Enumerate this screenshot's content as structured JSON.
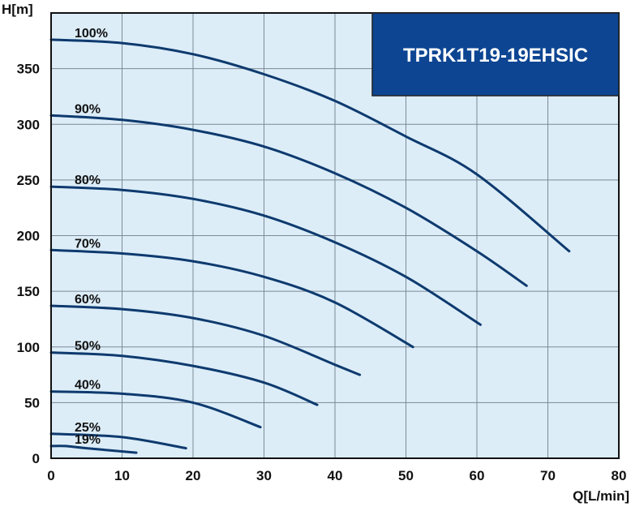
{
  "chart_data": {
    "type": "line",
    "title": "TPRK1T19-19EHSIC",
    "xlabel": "Q[L/min]",
    "ylabel": "H[m]",
    "xlim": [
      0,
      80
    ],
    "ylim": [
      0,
      400
    ],
    "xticks": [
      "0",
      "10",
      "20",
      "30",
      "40",
      "50",
      "60",
      "70",
      "80"
    ],
    "yticks": [
      "0",
      "50",
      "100",
      "150",
      "200",
      "250",
      "300",
      "350"
    ],
    "grid": true,
    "colors": {
      "plot_bg": "#dcedf8",
      "curve": "#0e3a6e",
      "title_bg": "#0d4592",
      "grid": "#7d8a96"
    },
    "series": [
      {
        "name": "100%",
        "x": [
          0,
          10,
          20,
          30,
          40,
          50,
          60,
          73
        ],
        "y": [
          376,
          373,
          363,
          345,
          321,
          289,
          255,
          186
        ]
      },
      {
        "name": "90%",
        "x": [
          0,
          10,
          20,
          30,
          40,
          50,
          60,
          67
        ],
        "y": [
          308,
          304,
          295,
          280,
          256,
          225,
          186,
          155
        ]
      },
      {
        "name": "80%",
        "x": [
          0,
          10,
          20,
          30,
          40,
          50,
          60.5
        ],
        "y": [
          244,
          241,
          233,
          218,
          194,
          163,
          120
        ]
      },
      {
        "name": "70%",
        "x": [
          0,
          10,
          20,
          30,
          40,
          51
        ],
        "y": [
          187,
          184,
          177,
          163,
          140,
          100
        ]
      },
      {
        "name": "60%",
        "x": [
          0,
          10,
          20,
          30,
          40,
          43.5
        ],
        "y": [
          137,
          134,
          126,
          110,
          84,
          75
        ]
      },
      {
        "name": "50%",
        "x": [
          0,
          10,
          20,
          30,
          37.5
        ],
        "y": [
          95,
          92,
          83,
          68,
          48
        ]
      },
      {
        "name": "40%",
        "x": [
          0,
          10,
          20,
          29.5
        ],
        "y": [
          60,
          58,
          50,
          28
        ]
      },
      {
        "name": "25%",
        "x": [
          0,
          10,
          19
        ],
        "y": [
          22,
          19,
          9
        ]
      },
      {
        "name": "19%",
        "x": [
          0,
          2,
          5,
          12
        ],
        "y": [
          11,
          11,
          9,
          5
        ]
      }
    ]
  }
}
